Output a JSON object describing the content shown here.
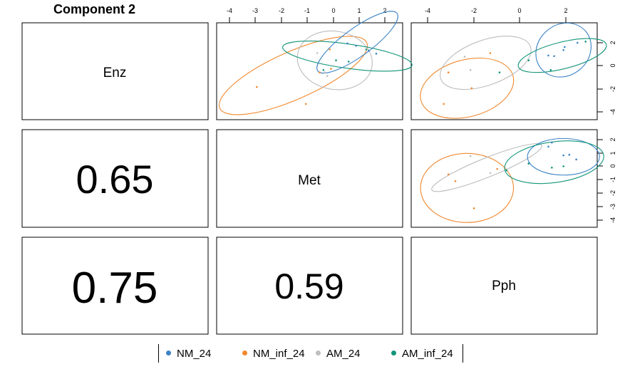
{
  "title": "Component 2",
  "colors": {
    "NM_24": "#3b83c4",
    "NM_inf_24": "#f0882f",
    "AM_24": "#bdbdbd",
    "AM_inf_24": "#12947a"
  },
  "legend": [
    {
      "name": "NM_24",
      "color_key": "NM_24"
    },
    {
      "name": "NM_inf_24",
      "color_key": "NM_inf_24"
    },
    {
      "name": "AM_24",
      "color_key": "AM_24"
    },
    {
      "name": "AM_inf_24",
      "color_key": "AM_inf_24"
    }
  ],
  "chart_data": {
    "type": "scatter",
    "diagonal_labels": [
      "Enz",
      "Met",
      "Pph"
    ],
    "correlations": [
      {
        "row": 2,
        "col": 1,
        "label": "0.65",
        "value": 0.65
      },
      {
        "row": 3,
        "col": 1,
        "label": "0.75",
        "value": 0.75
      },
      {
        "row": 3,
        "col": 2,
        "label": "0.59",
        "value": 0.59
      }
    ],
    "top_axis_ticks": {
      "Met": [
        "-4",
        "-3",
        "-2",
        "-1",
        "0",
        "1",
        "2"
      ],
      "Pph": [
        "-4",
        "-2",
        "0",
        "2"
      ]
    },
    "right_axis_ticks": {
      "Enz": [
        "2",
        "0",
        "-2",
        "-4"
      ],
      "Met": [
        "2",
        "1",
        "0",
        "-1",
        "-2",
        "-3",
        "-4"
      ]
    },
    "panels": [
      {
        "id": "Met-Enz",
        "x_variable": "Met",
        "y_variable": "Enz",
        "xlim": [
          -4.6,
          2.8
        ],
        "ylim": [
          -4.5,
          3.5
        ],
        "points": [
          {
            "group": "NM_24",
            "x": 0.6,
            "y": 1.8
          },
          {
            "group": "NM_24",
            "x": 0.95,
            "y": 1.6
          },
          {
            "group": "NM_24",
            "x": 1.45,
            "y": 1.2
          },
          {
            "group": "NM_24",
            "x": 1.75,
            "y": 0.95
          },
          {
            "group": "NM_inf_24",
            "x": -3.0,
            "y": -1.8
          },
          {
            "group": "NM_inf_24",
            "x": -1.05,
            "y": -3.2
          },
          {
            "group": "NM_inf_24",
            "x": -0.1,
            "y": 1.3
          },
          {
            "group": "NM_inf_24",
            "x": -0.5,
            "y": -0.6
          },
          {
            "group": "NM_inf_24",
            "x": -0.05,
            "y": -0.3
          },
          {
            "group": "AM_24",
            "x": -0.6,
            "y": 1.0
          },
          {
            "group": "AM_24",
            "x": -0.3,
            "y": -0.6
          },
          {
            "group": "AM_24",
            "x": -0.2,
            "y": -0.9
          },
          {
            "group": "AM_inf_24",
            "x": 0.15,
            "y": 0.4
          },
          {
            "group": "AM_inf_24",
            "x": 0.65,
            "y": 0.3
          },
          {
            "group": "AM_inf_24",
            "x": -0.35,
            "y": -0.4
          },
          {
            "group": "AM_inf_24",
            "x": 1.35,
            "y": 1.3
          }
        ],
        "ellipses": [
          {
            "group": "NM_inf_24",
            "cx": -1.55,
            "cy": -0.85,
            "rx": 3.2,
            "ry": 1.95,
            "angle": 24
          },
          {
            "group": "AM_24",
            "cx": 0.1,
            "cy": 0.4,
            "rx": 1.5,
            "ry": 2.4,
            "angle": -10
          },
          {
            "group": "AM_inf_24",
            "cx": 0.6,
            "cy": 0.75,
            "rx": 2.6,
            "ry": 1.0,
            "angle": -8
          },
          {
            "group": "NM_24",
            "cx": 1.0,
            "cy": 1.9,
            "rx": 1.95,
            "ry": 1.15,
            "angle": 36
          }
        ]
      },
      {
        "id": "Pph-Enz",
        "x_variable": "Pph",
        "y_variable": "Enz",
        "xlim": [
          -4.6,
          3.4
        ],
        "ylim": [
          -4.5,
          3.5
        ],
        "points": [
          {
            "group": "NM_24",
            "x": 1.3,
            "y": 0.8
          },
          {
            "group": "NM_24",
            "x": 1.55,
            "y": 0.75
          },
          {
            "group": "NM_24",
            "x": 2.0,
            "y": 1.5
          },
          {
            "group": "NM_24",
            "x": 2.55,
            "y": 1.85
          },
          {
            "group": "NM_24",
            "x": 1.95,
            "y": 1.25
          },
          {
            "group": "NM_inf_24",
            "x": -3.0,
            "y": -0.6
          },
          {
            "group": "NM_inf_24",
            "x": -3.2,
            "y": -3.2
          },
          {
            "group": "NM_inf_24",
            "x": -2.0,
            "y": -1.9
          },
          {
            "group": "NM_inf_24",
            "x": -1.2,
            "y": 1.0
          },
          {
            "group": "AM_24",
            "x": -2.05,
            "y": -0.4
          },
          {
            "group": "AM_24",
            "x": -2.3,
            "y": 0.7
          },
          {
            "group": "AM_inf_24",
            "x": 0.45,
            "y": 0.4
          },
          {
            "group": "AM_inf_24",
            "x": 1.4,
            "y": -0.4
          },
          {
            "group": "AM_inf_24",
            "x": 2.9,
            "y": 1.95
          },
          {
            "group": "AM_inf_24",
            "x": -0.8,
            "y": -0.6
          }
        ],
        "ellipses": [
          {
            "group": "NM_inf_24",
            "cx": -2.2,
            "cy": -1.9,
            "rx": 2.05,
            "ry": 2.35,
            "angle": 15
          },
          {
            "group": "AM_24",
            "cx": -1.4,
            "cy": 0.2,
            "rx": 2.05,
            "ry": 1.85,
            "angle": 20
          },
          {
            "group": "NM_24",
            "cx": 1.95,
            "cy": 1.25,
            "rx": 1.25,
            "ry": 2.1,
            "angle": 40
          },
          {
            "group": "AM_inf_24",
            "cx": 1.9,
            "cy": 0.8,
            "rx": 1.95,
            "ry": 1.1,
            "angle": 14
          }
        ]
      },
      {
        "id": "Pph-Met",
        "x_variable": "Pph",
        "y_variable": "Met",
        "xlim": [
          -4.6,
          3.4
        ],
        "ylim": [
          -4.5,
          2.7
        ],
        "points": [
          {
            "group": "NM_24",
            "x": 1.3,
            "y": 1.45
          },
          {
            "group": "NM_24",
            "x": 1.45,
            "y": 1.75
          },
          {
            "group": "NM_24",
            "x": 1.95,
            "y": 0.8
          },
          {
            "group": "NM_24",
            "x": 2.2,
            "y": 0.85
          },
          {
            "group": "NM_24",
            "x": 2.5,
            "y": 0.5
          },
          {
            "group": "NM_inf_24",
            "x": -3.0,
            "y": -0.6
          },
          {
            "group": "NM_inf_24",
            "x": -2.7,
            "y": -1.1
          },
          {
            "group": "NM_inf_24",
            "x": -1.9,
            "y": -3.1
          },
          {
            "group": "NM_inf_24",
            "x": -0.9,
            "y": -0.2
          },
          {
            "group": "AM_24",
            "x": -2.05,
            "y": 0.75
          },
          {
            "group": "AM_24",
            "x": -1.2,
            "y": -0.5
          },
          {
            "group": "AM_inf_24",
            "x": 0.45,
            "y": 0.2
          },
          {
            "group": "AM_inf_24",
            "x": 1.45,
            "y": -0.1
          },
          {
            "group": "AM_inf_24",
            "x": 1.95,
            "y": 0.0
          },
          {
            "group": "AM_inf_24",
            "x": -0.5,
            "y": -0.3
          }
        ],
        "ellipses": [
          {
            "group": "NM_inf_24",
            "cx": -2.2,
            "cy": -1.6,
            "rx": 2.0,
            "ry": 2.55,
            "angle": 0
          },
          {
            "group": "AM_24",
            "cx": -1.35,
            "cy": -0.1,
            "rx": 2.55,
            "ry": 0.7,
            "angle": 22
          },
          {
            "group": "NM_24",
            "cx": 1.95,
            "cy": 0.7,
            "rx": 1.55,
            "ry": 1.35,
            "angle": 0
          },
          {
            "group": "AM_inf_24",
            "cx": 1.55,
            "cy": 0.3,
            "rx": 2.15,
            "ry": 1.5,
            "angle": 8
          }
        ]
      }
    ]
  }
}
